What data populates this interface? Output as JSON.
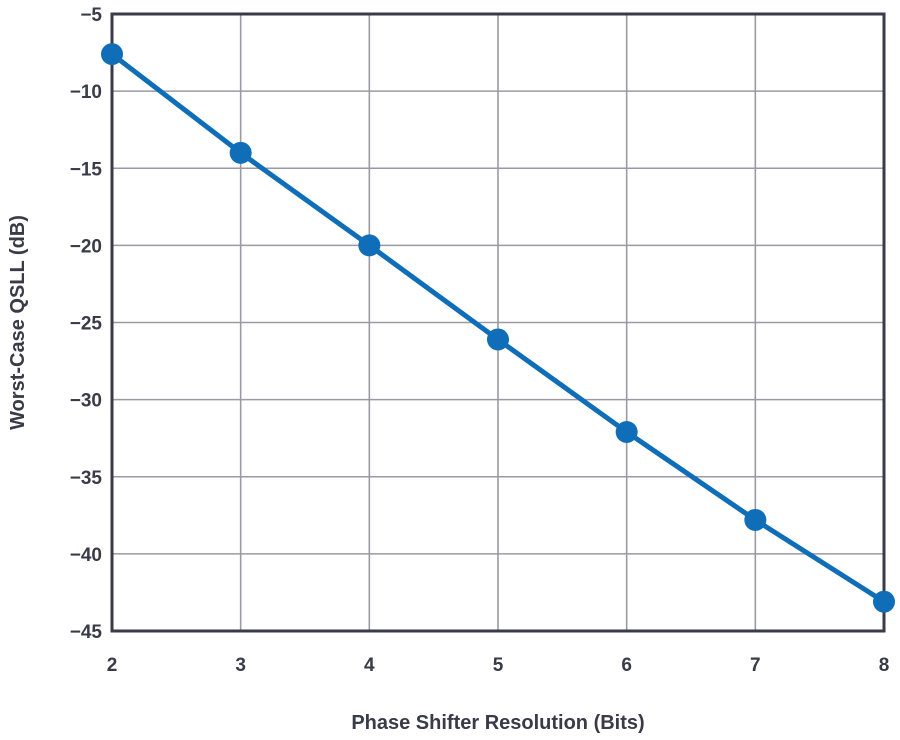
{
  "chart_data": {
    "type": "line",
    "title": "",
    "xlabel": "Phase Shifter Resolution (Bits)",
    "ylabel": "Worst-Case QSLL (dB)",
    "xlim": [
      2,
      8
    ],
    "ylim": [
      -45,
      -5
    ],
    "x_ticks": [
      "2",
      "3",
      "4",
      "5",
      "6",
      "7",
      "8"
    ],
    "y_ticks": [
      "−5",
      "−10",
      "−15",
      "−20",
      "−25",
      "−30",
      "−35",
      "−40",
      "−45"
    ],
    "grid": true,
    "legend": "none",
    "series": [
      {
        "x": [
          2,
          3,
          4,
          5,
          6,
          7,
          8
        ],
        "y": [
          -7.6,
          -14.0,
          -20.0,
          -26.1,
          -32.1,
          -37.8,
          -43.1
        ],
        "color": "#0f6eb7"
      }
    ],
    "colors": {
      "line": "#0f6eb7",
      "grid": "#9a9aa5",
      "frame": "#3a3a48",
      "text": "#3a3a48"
    }
  }
}
